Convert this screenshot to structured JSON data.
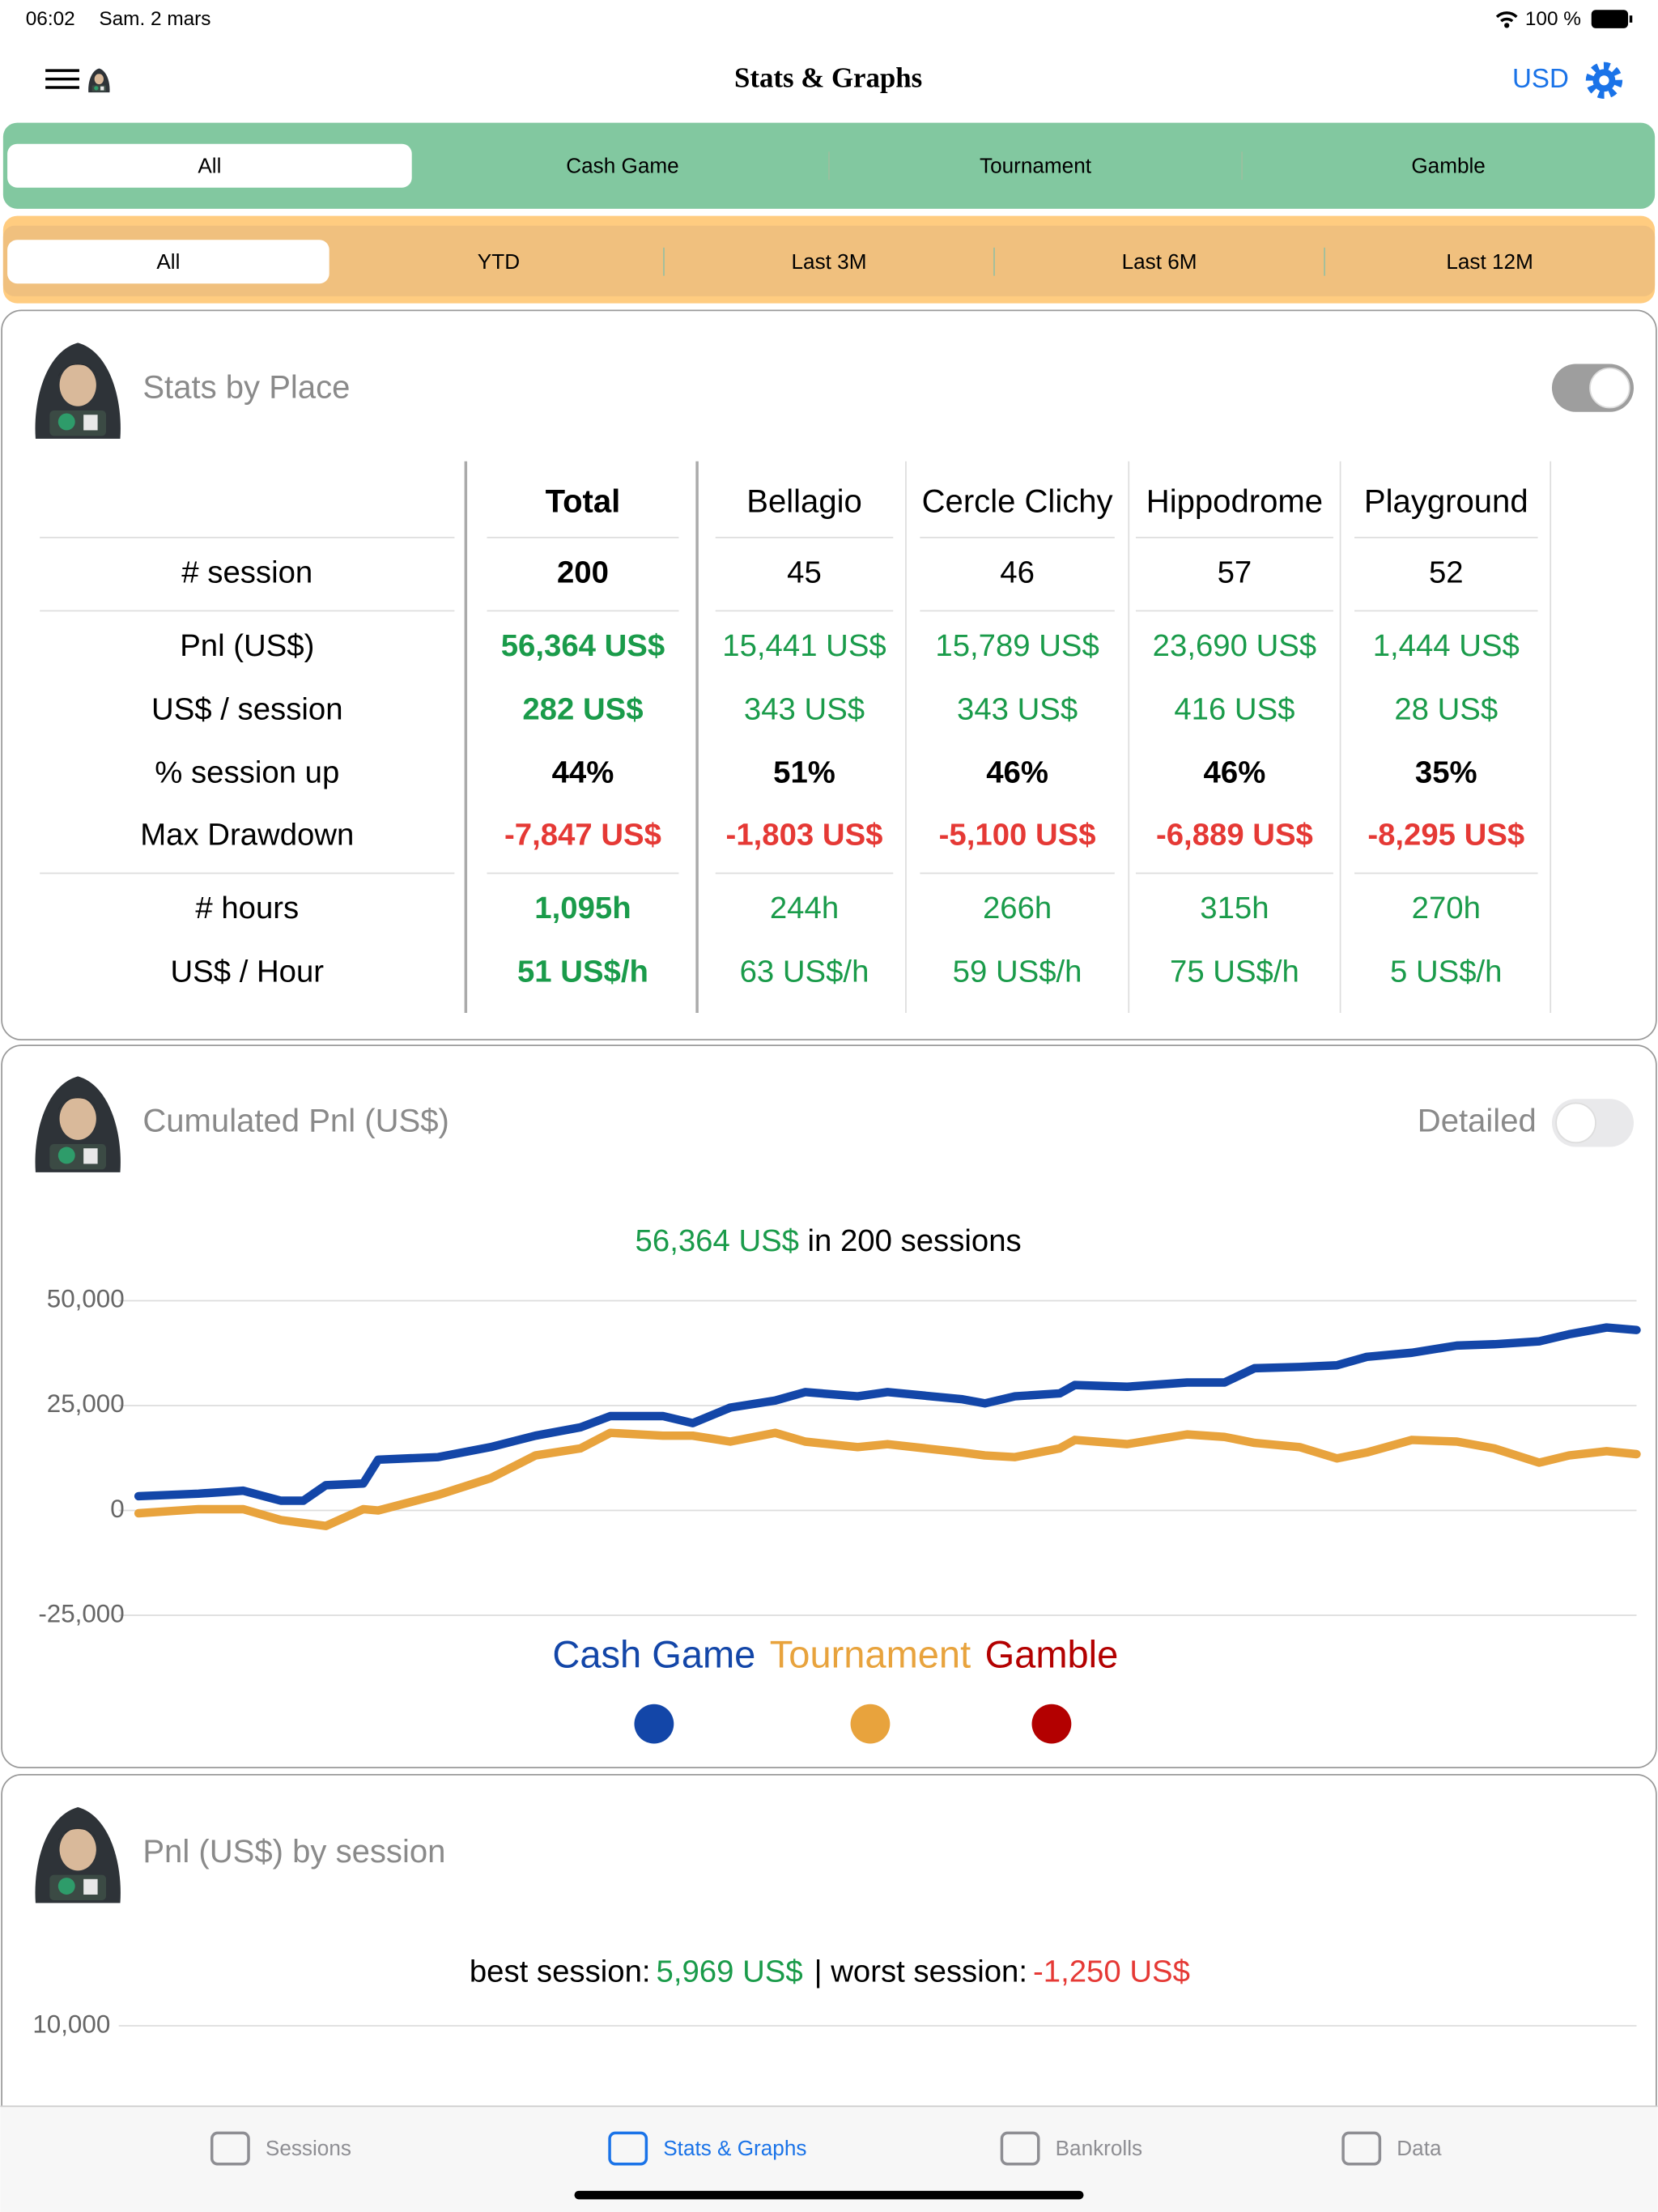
{
  "status_bar": {
    "time": "06:02",
    "date": "Sam. 2 mars",
    "battery": "100 %"
  },
  "nav": {
    "title": "Stats & Graphs",
    "currency": "USD"
  },
  "game_filter": {
    "options": [
      "All",
      "Cash Game",
      "Tournament",
      "Gamble"
    ],
    "selected": 0
  },
  "period_filter": {
    "options": [
      "All",
      "YTD",
      "Last 3M",
      "Last 6M",
      "Last 12M"
    ],
    "selected": 0
  },
  "stats_by_place": {
    "title": "Stats by Place",
    "toggle": true,
    "columns": [
      "Total",
      "Bellagio",
      "Cercle Clichy",
      "Hippodrome",
      "Playground"
    ],
    "rows": [
      {
        "label": "# session",
        "color": "#000000",
        "bold": false,
        "values": [
          "200",
          "45",
          "46",
          "57",
          "52"
        ]
      },
      {
        "label": "Pnl (US$)",
        "color": "#1a9b4a",
        "bold": false,
        "values": [
          "56,364 US$",
          "15,441 US$",
          "15,789 US$",
          "23,690 US$",
          "1,444 US$"
        ]
      },
      {
        "label": "US$ / session",
        "color": "#1a9b4a",
        "bold": false,
        "values": [
          "282 US$",
          "343 US$",
          "343 US$",
          "416 US$",
          "28 US$"
        ]
      },
      {
        "label": "% session up",
        "color": "#000000",
        "bold": true,
        "values": [
          "44%",
          "51%",
          "46%",
          "46%",
          "35%"
        ]
      },
      {
        "label": "Max Drawdown",
        "color": "#e53935",
        "bold": true,
        "values": [
          "-7,847 US$",
          "-1,803 US$",
          "-5,100 US$",
          "-6,889 US$",
          "-8,295 US$"
        ]
      },
      {
        "label": "# hours",
        "color": "#1a9b4a",
        "bold": false,
        "values": [
          "1,095h",
          "244h",
          "266h",
          "315h",
          "270h"
        ]
      },
      {
        "label": "US$ / Hour",
        "color": "#1a9b4a",
        "bold": false,
        "values": [
          "51 US$/h",
          "63 US$/h",
          "59 US$/h",
          "75 US$/h",
          "5 US$/h"
        ]
      }
    ]
  },
  "chart_data": {
    "type": "line",
    "title": "Cumulated Pnl (US$)",
    "toggle_label": "Detailed",
    "detailed": false,
    "subtitle_value": "56,364 US$",
    "subtitle_text": "in 200 sessions",
    "x": [
      0,
      8,
      14,
      19,
      22,
      25,
      30,
      32,
      40,
      47,
      53,
      59,
      63,
      70,
      74,
      79,
      85,
      89,
      96,
      100,
      110,
      113,
      117,
      123,
      125,
      132,
      140,
      145,
      149,
      155,
      160,
      164,
      170,
      176,
      181,
      187,
      191,
      196,
      200
    ],
    "series": [
      {
        "name": "Cash Game",
        "color": "#1346a8",
        "values": [
          3400,
          4000,
          4700,
          2300,
          2300,
          6000,
          6400,
          12100,
          12700,
          15100,
          17800,
          19800,
          22500,
          22500,
          20800,
          24500,
          26200,
          28200,
          27200,
          28200,
          26500,
          25500,
          27200,
          27900,
          29900,
          29500,
          30500,
          30500,
          33900,
          34200,
          34600,
          36600,
          37600,
          39300,
          39600,
          40300,
          42000,
          43600,
          43000
        ]
      },
      {
        "name": "Tournament",
        "color": "#e8a33d",
        "values": [
          -700,
          300,
          300,
          -2300,
          -3000,
          -3700,
          300,
          0,
          3700,
          7700,
          13100,
          14800,
          18500,
          17800,
          17800,
          16400,
          18500,
          16400,
          15100,
          15800,
          13800,
          13100,
          12700,
          14800,
          16800,
          15800,
          18100,
          17500,
          16100,
          15100,
          12400,
          13800,
          16800,
          16400,
          14800,
          11400,
          13100,
          14100,
          13400
        ]
      },
      {
        "name": "Gamble",
        "color": "#b30000",
        "values": [
          null,
          null,
          null,
          null,
          null,
          null,
          null,
          null,
          null,
          null,
          null,
          null,
          null,
          null,
          null,
          null,
          null,
          null,
          null,
          null,
          null,
          null,
          null,
          null,
          null,
          null,
          null,
          null,
          null,
          null,
          null,
          null,
          null,
          null,
          null,
          null,
          null,
          null,
          null
        ]
      }
    ],
    "xlim": [
      0,
      200
    ],
    "ylim": [
      -25000,
      50000
    ],
    "yticks": [
      {
        "value": -25000,
        "label": "-25,000"
      },
      0,
      {
        "value": 25000,
        "label": "25,000"
      },
      {
        "value": 50000,
        "label": "50,000"
      }
    ],
    "grid": true
  },
  "session_chart": {
    "title": "Pnl (US$) by session",
    "best_label": "best session:",
    "best_value": "5,969 US$",
    "worst_label": "| worst session:",
    "worst_value": "-1,250 US$",
    "yticks": [
      {
        "value": 10000,
        "label": "10,000"
      }
    ]
  },
  "tab_bar": {
    "items": [
      "Sessions",
      "Stats & Graphs",
      "Bankrolls",
      "Data"
    ],
    "selected": 1
  }
}
